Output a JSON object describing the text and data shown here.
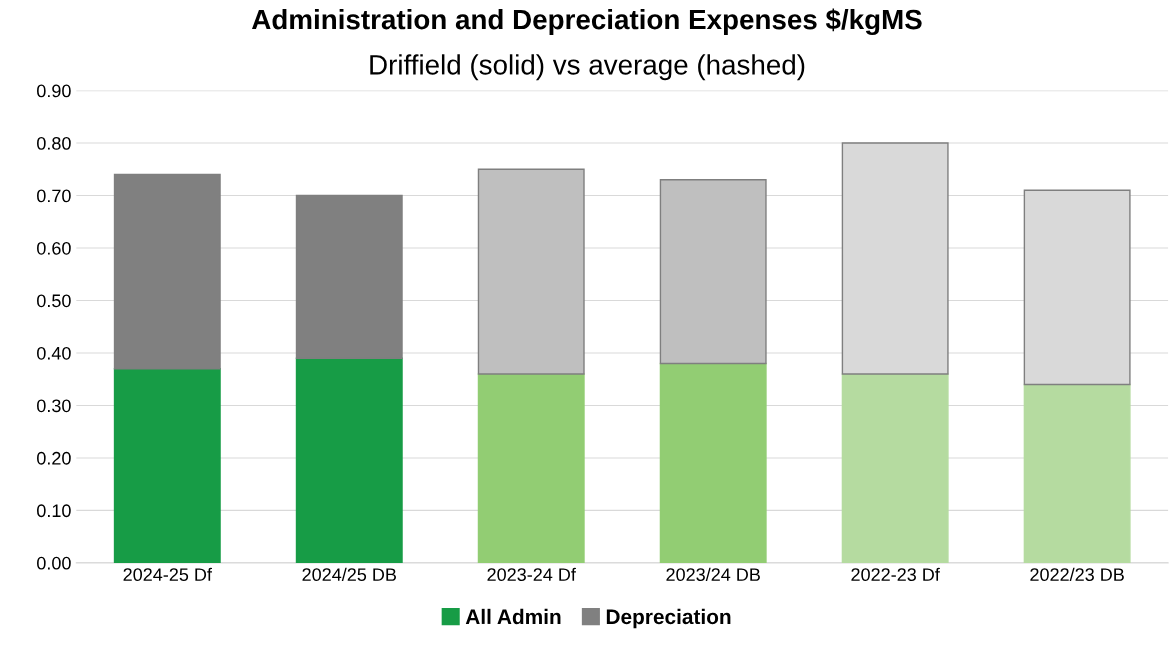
{
  "chart_data": {
    "type": "bar",
    "stacked": true,
    "title": "Administration and Depreciation Expenses $/kgMS",
    "subtitle": "Driffield (solid) vs average (hashed)",
    "categories": [
      "2024-25 Df",
      "2024/25 DB",
      "2023-24 Df",
      "2023/24 DB",
      "2022-23 Df",
      "2022/23 DB"
    ],
    "series": [
      {
        "name": "All Admin",
        "color": "#179c46",
        "colors": [
          "#179c46",
          "#179c46",
          "#92cd73",
          "#92cd73",
          "#b5dba0",
          "#b5dba0"
        ],
        "values": [
          0.37,
          0.39,
          0.36,
          0.38,
          0.36,
          0.34
        ]
      },
      {
        "name": "Depreciation",
        "color": "#808080",
        "colors": [
          "#808080",
          "#808080",
          "#bfbfbf",
          "#bfbfbf",
          "#d9d9d9",
          "#d9d9d9"
        ],
        "values": [
          0.37,
          0.31,
          0.39,
          0.35,
          0.44,
          0.37
        ]
      }
    ],
    "ylim": [
      0,
      0.9
    ],
    "yticks": [
      {
        "value": 0,
        "label": "0.00"
      },
      {
        "value": 0.1,
        "label": "0.10"
      },
      {
        "value": 0.2,
        "label": "0.20"
      },
      {
        "value": 0.3,
        "label": "0.30"
      },
      {
        "value": 0.4,
        "label": "0.40"
      },
      {
        "value": 0.5,
        "label": "0.50"
      },
      {
        "value": 0.6,
        "label": "0.60"
      },
      {
        "value": 0.7,
        "label": "0.70"
      },
      {
        "value": 0.8,
        "label": "0.80"
      },
      {
        "value": 0.9,
        "label": "0.90"
      }
    ],
    "grid": "y",
    "legend": "bottom"
  }
}
